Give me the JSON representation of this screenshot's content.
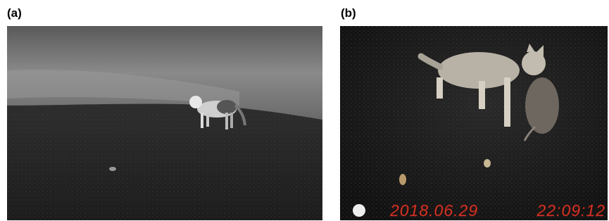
{
  "panels": [
    {
      "label": "(a)"
    },
    {
      "label": "(b)",
      "timestamp": {
        "date": "2018.06.29",
        "time": "22:09:12"
      }
    }
  ]
}
